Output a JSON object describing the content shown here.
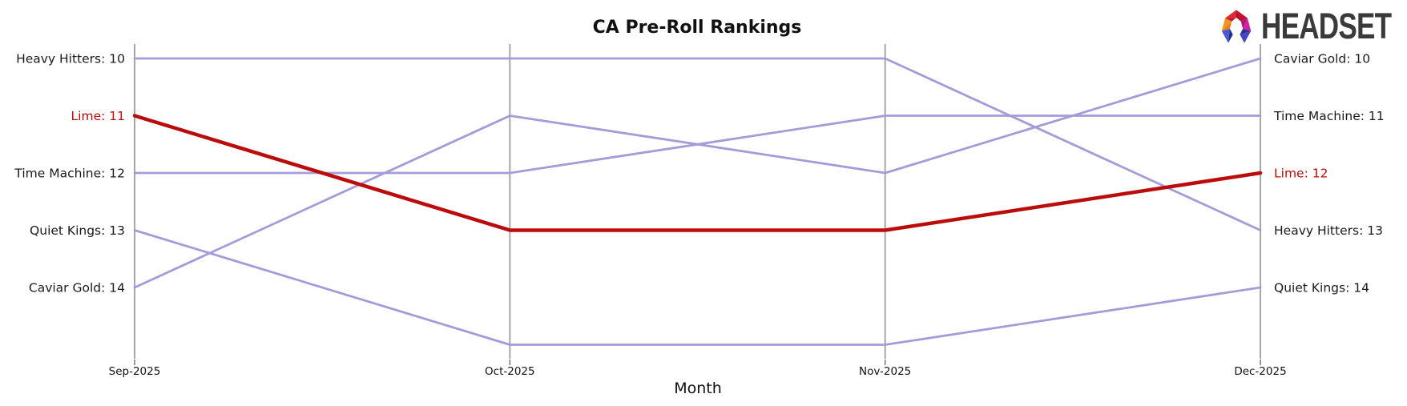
{
  "logo": {
    "text": "HEADSET"
  },
  "chart_data": {
    "type": "line",
    "subtype": "bump-ranking",
    "title": "CA Pre-Roll Rankings",
    "xlabel": "Month",
    "x": [
      "Sep-2025",
      "Oct-2025",
      "Nov-2025",
      "Dec-2025"
    ],
    "rank_range": [
      10,
      15
    ],
    "y_axis_inverted": true,
    "grid": "vertical-axes-only",
    "legend": "none",
    "series": [
      {
        "name": "Heavy Hitters",
        "ranks": [
          10,
          10,
          10,
          13
        ],
        "color": "#a49cda",
        "highlight": false,
        "label_left": "Heavy Hitters: 10",
        "label_right": "Heavy Hitters: 13"
      },
      {
        "name": "Time Machine",
        "ranks": [
          12,
          12,
          11,
          11
        ],
        "color": "#a49cda",
        "highlight": false,
        "label_left": "Time Machine: 12",
        "label_right": "Time Machine: 11"
      },
      {
        "name": "Quiet Kings",
        "ranks": [
          13,
          15,
          15,
          14
        ],
        "color": "#a49cda",
        "highlight": false,
        "label_left": "Quiet Kings: 13",
        "label_right": "Quiet Kings: 14"
      },
      {
        "name": "Caviar Gold",
        "ranks": [
          14,
          11,
          12,
          10
        ],
        "color": "#a49cda",
        "highlight": false,
        "label_left": "Caviar Gold: 14",
        "label_right": "Caviar Gold: 10"
      },
      {
        "name": "Lime",
        "ranks": [
          11,
          13,
          13,
          12
        ],
        "color": "#bb0c0c",
        "highlight": true,
        "label_left": "Lime: 11",
        "label_right": "Lime: 12"
      }
    ],
    "colors": {
      "line_default": "#a49cda",
      "line_highlight": "#bb0c0c",
      "axis": "#a6a6a6",
      "tick": "#555555",
      "label": "#1a1a1a",
      "title": "#111111"
    }
  }
}
